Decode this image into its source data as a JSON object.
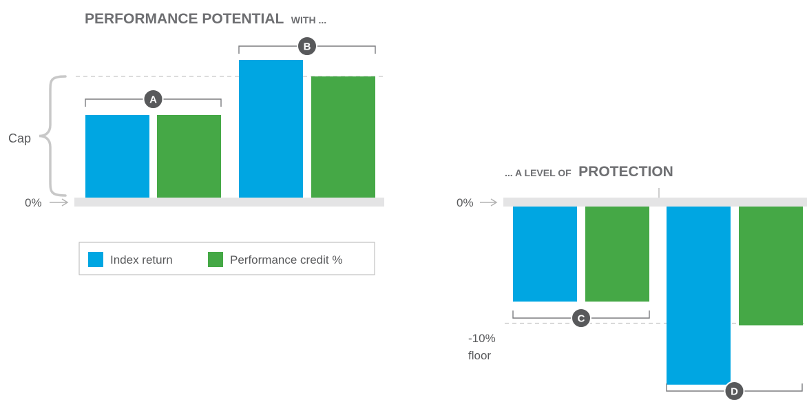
{
  "colors": {
    "index": "#00a6e2",
    "credit": "#45a846",
    "baseline": "#e4e4e5",
    "bracket": "#7b7c7f",
    "badge": "#58595b",
    "dashed": "#c8c8c8",
    "text": "#6d6e71"
  },
  "chart_data": [
    {
      "type": "bar",
      "panel": "performance",
      "title_main": "PERFORMANCE POTENTIAL",
      "title_suffix": "WITH ...",
      "axis_zero_label": "0%",
      "cap_label": "Cap",
      "series": [
        {
          "name": "Index return",
          "values": [
            12,
            20
          ]
        },
        {
          "name": "Performance credit %",
          "values": [
            12,
            17.6
          ]
        }
      ],
      "cap_value": 17.6,
      "groups": [
        "A",
        "B"
      ],
      "legend": {
        "position": "bottom",
        "items": [
          "Index return",
          "Performance credit %"
        ]
      }
    },
    {
      "type": "bar",
      "panel": "protection",
      "title_prefix": "... A LEVEL OF",
      "title_main": "PROTECTION",
      "axis_zero_label": "0%",
      "floor_label_1": "-10%",
      "floor_label_2": "floor",
      "floor_value": -10,
      "series": [
        {
          "name": "Index return",
          "values": [
            -8,
            -15
          ]
        },
        {
          "name": "Performance credit %",
          "values": [
            -8,
            -10
          ]
        }
      ],
      "groups": [
        "C",
        "D"
      ]
    }
  ]
}
